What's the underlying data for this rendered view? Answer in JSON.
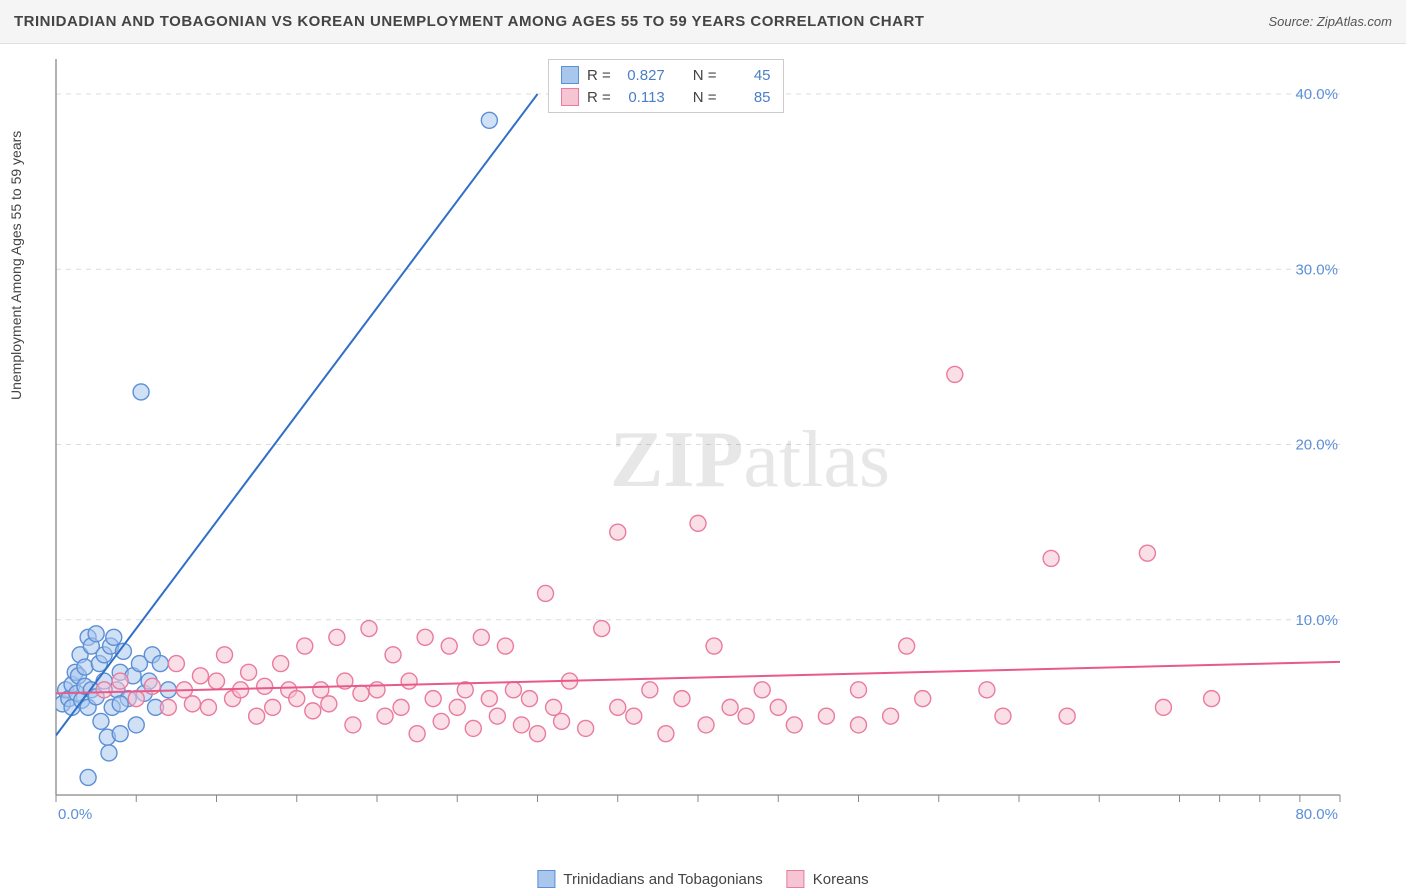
{
  "title": "TRINIDADIAN AND TOBAGONIAN VS KOREAN UNEMPLOYMENT AMONG AGES 55 TO 59 YEARS CORRELATION CHART",
  "source_label": "Source: ",
  "source_name": "ZipAtlas.com",
  "y_axis_label": "Unemployment Among Ages 55 to 59 years",
  "watermark": "ZIPatlas",
  "chart": {
    "type": "scatter",
    "background_color": "#ffffff",
    "grid_color": "#dcdcdc",
    "axis_line_color": "#888888",
    "tick_label_color": "#5b8fd6",
    "tick_fontsize": 15,
    "xlim": [
      0,
      80
    ],
    "ylim": [
      0,
      42
    ],
    "x_ticks": [
      0,
      5,
      10,
      15,
      20,
      25,
      30,
      35,
      40,
      45,
      50,
      55,
      60,
      65,
      70,
      72.5,
      75,
      77.5,
      80
    ],
    "x_tick_labels": {
      "0": "0.0%",
      "80": "80.0%"
    },
    "y_gridlines": [
      10,
      20,
      30,
      40
    ],
    "y_tick_labels": {
      "10": "10.0%",
      "20": "20.0%",
      "30": "30.0%",
      "40": "40.0%"
    },
    "marker_radius": 8,
    "marker_opacity": 0.55,
    "line_width": 2
  },
  "series": [
    {
      "id": "trinidad",
      "legend_label": "Trinidadians and Tobagonians",
      "color_fill": "#a9c6ec",
      "color_stroke": "#5b8fd6",
      "trend_color": "#2e6fc9",
      "R": "0.827",
      "N": "45",
      "trend": {
        "x1": 0,
        "y1": 3.4,
        "x2": 30,
        "y2": 40
      },
      "points": [
        [
          0.4,
          5.2
        ],
        [
          0.6,
          6.0
        ],
        [
          0.8,
          5.5
        ],
        [
          1.0,
          6.3
        ],
        [
          1.0,
          5.0
        ],
        [
          1.2,
          7.0
        ],
        [
          1.3,
          5.8
        ],
        [
          1.4,
          6.8
        ],
        [
          1.5,
          8.0
        ],
        [
          1.6,
          5.4
        ],
        [
          1.8,
          6.2
        ],
        [
          1.8,
          7.3
        ],
        [
          2.0,
          5.0
        ],
        [
          2.0,
          9.0
        ],
        [
          2.2,
          8.5
        ],
        [
          2.2,
          6.0
        ],
        [
          2.5,
          9.2
        ],
        [
          2.5,
          5.6
        ],
        [
          2.7,
          7.5
        ],
        [
          2.8,
          4.2
        ],
        [
          3.0,
          8.0
        ],
        [
          3.0,
          6.5
        ],
        [
          3.2,
          3.3
        ],
        [
          3.4,
          8.5
        ],
        [
          3.5,
          5.0
        ],
        [
          3.6,
          9.0
        ],
        [
          3.8,
          6.0
        ],
        [
          4.0,
          7.0
        ],
        [
          4.0,
          3.5
        ],
        [
          4.2,
          8.2
        ],
        [
          4.5,
          5.5
        ],
        [
          4.8,
          6.8
        ],
        [
          5.0,
          4.0
        ],
        [
          5.2,
          7.5
        ],
        [
          5.5,
          5.8
        ],
        [
          5.8,
          6.5
        ],
        [
          6.0,
          8.0
        ],
        [
          6.2,
          5.0
        ],
        [
          6.5,
          7.5
        ],
        [
          7.0,
          6.0
        ],
        [
          3.3,
          2.4
        ],
        [
          2.0,
          1.0
        ],
        [
          5.3,
          23.0
        ],
        [
          27.0,
          38.5
        ],
        [
          4.0,
          5.2
        ]
      ]
    },
    {
      "id": "korean",
      "legend_label": "Koreans",
      "color_fill": "#f6c5d3",
      "color_stroke": "#ea7aa0",
      "trend_color": "#e85a8a",
      "R": "0.113",
      "N": "85",
      "trend": {
        "x1": 0,
        "y1": 5.8,
        "x2": 80,
        "y2": 7.6
      },
      "points": [
        [
          3,
          6.0
        ],
        [
          4,
          6.5
        ],
        [
          5,
          5.5
        ],
        [
          6,
          6.2
        ],
        [
          7,
          5.0
        ],
        [
          7.5,
          7.5
        ],
        [
          8,
          6.0
        ],
        [
          8.5,
          5.2
        ],
        [
          9,
          6.8
        ],
        [
          9.5,
          5.0
        ],
        [
          10,
          6.5
        ],
        [
          10.5,
          8.0
        ],
        [
          11,
          5.5
        ],
        [
          11.5,
          6.0
        ],
        [
          12,
          7.0
        ],
        [
          12.5,
          4.5
        ],
        [
          13,
          6.2
        ],
        [
          13.5,
          5.0
        ],
        [
          14,
          7.5
        ],
        [
          14.5,
          6.0
        ],
        [
          15,
          5.5
        ],
        [
          15.5,
          8.5
        ],
        [
          16,
          4.8
        ],
        [
          16.5,
          6.0
        ],
        [
          17,
          5.2
        ],
        [
          17.5,
          9.0
        ],
        [
          18,
          6.5
        ],
        [
          18.5,
          4.0
        ],
        [
          19,
          5.8
        ],
        [
          19.5,
          9.5
        ],
        [
          20,
          6.0
        ],
        [
          20.5,
          4.5
        ],
        [
          21,
          8.0
        ],
        [
          21.5,
          5.0
        ],
        [
          22,
          6.5
        ],
        [
          22.5,
          3.5
        ],
        [
          23,
          9.0
        ],
        [
          23.5,
          5.5
        ],
        [
          24,
          4.2
        ],
        [
          24.5,
          8.5
        ],
        [
          25,
          5.0
        ],
        [
          25.5,
          6.0
        ],
        [
          26,
          3.8
        ],
        [
          26.5,
          9.0
        ],
        [
          27,
          5.5
        ],
        [
          27.5,
          4.5
        ],
        [
          28,
          8.5
        ],
        [
          28.5,
          6.0
        ],
        [
          29,
          4.0
        ],
        [
          29.5,
          5.5
        ],
        [
          30,
          3.5
        ],
        [
          30.5,
          11.5
        ],
        [
          31,
          5.0
        ],
        [
          31.5,
          4.2
        ],
        [
          32,
          6.5
        ],
        [
          33,
          3.8
        ],
        [
          34,
          9.5
        ],
        [
          35,
          5.0
        ],
        [
          35,
          15.0
        ],
        [
          36,
          4.5
        ],
        [
          37,
          6.0
        ],
        [
          38,
          3.5
        ],
        [
          39,
          5.5
        ],
        [
          40,
          15.5
        ],
        [
          40.5,
          4.0
        ],
        [
          41,
          8.5
        ],
        [
          42,
          5.0
        ],
        [
          43,
          4.5
        ],
        [
          44,
          6.0
        ],
        [
          45,
          5.0
        ],
        [
          46,
          4.0
        ],
        [
          48,
          4.5
        ],
        [
          50,
          6.0
        ],
        [
          50,
          4.0
        ],
        [
          52,
          4.5
        ],
        [
          53,
          8.5
        ],
        [
          54,
          5.5
        ],
        [
          56,
          24.0
        ],
        [
          58,
          6.0
        ],
        [
          59,
          4.5
        ],
        [
          62,
          13.5
        ],
        [
          63,
          4.5
        ],
        [
          68,
          13.8
        ],
        [
          69,
          5.0
        ],
        [
          72,
          5.5
        ]
      ]
    }
  ],
  "stats_box": {
    "R_label": "R =",
    "N_label": "N ="
  },
  "legend_position": "bottom-center"
}
